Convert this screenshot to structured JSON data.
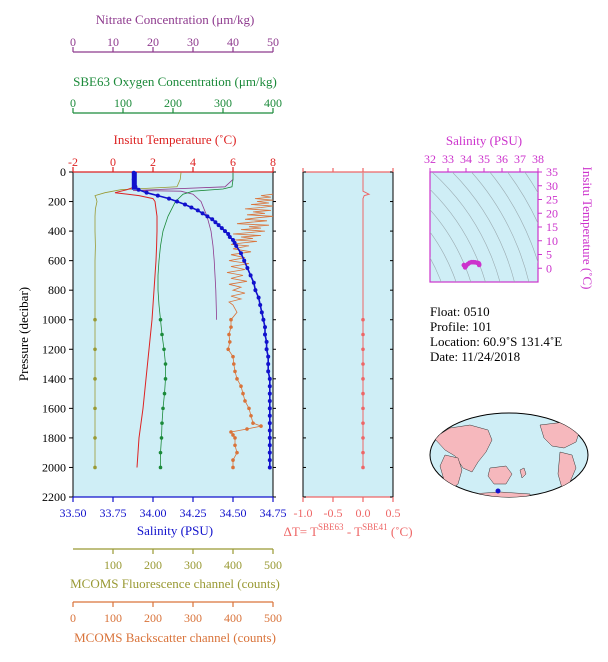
{
  "colors": {
    "nitrate": "#8e3a8e",
    "oxygen": "#1b8a3a",
    "temperature": "#dd2222",
    "salinity": "#1111cc",
    "fluorescence": "#999933",
    "backscatter": "#d9733a",
    "dt": "#ee6666",
    "ts_axis": "#cc33cc",
    "plot_bg": "#cfeef6",
    "land": "#f6b8bd",
    "ocean": "#cfeef6"
  },
  "float_info": {
    "float_line": "Float:  0510",
    "profile_line": "Profile:  101",
    "location_line": "Location:  60.9˚S  131.4˚E",
    "date_line": "Date:  11/24/2018"
  },
  "chart_data": [
    {
      "id": "profile",
      "type": "line",
      "ylabel": "Pressure (decibar)",
      "ylim": [
        2200,
        0
      ],
      "yticks": [
        "0",
        "200",
        "400",
        "600",
        "800",
        "1000",
        "1200",
        "1400",
        "1600",
        "1800",
        "2000",
        "2200"
      ],
      "axes": {
        "salinity": {
          "label": "Salinity (PSU)",
          "range": [
            33.5,
            34.75
          ],
          "ticks": [
            "33.50",
            "33.75",
            "34.00",
            "34.25",
            "34.50",
            "34.75"
          ]
        },
        "temperature": {
          "label": "Insitu Temperature (˚C)",
          "range": [
            -2,
            8
          ],
          "ticks": [
            "-2",
            "0",
            "2",
            "4",
            "6",
            "8"
          ]
        },
        "oxygen": {
          "label": "SBE63 Oxygen Concentration (μm/kg)",
          "range": [
            0,
            400
          ],
          "ticks": [
            "0",
            "100",
            "200",
            "300",
            "400"
          ]
        },
        "nitrate": {
          "label": "Nitrate Concentration (μm/kg)",
          "range": [
            0,
            50
          ],
          "ticks": [
            "0",
            "10",
            "20",
            "30",
            "40",
            "50"
          ]
        },
        "fluorescence": {
          "label": "MCOMS Fluorescence channel (counts)",
          "range": [
            0,
            500
          ],
          "ticks": [
            "100",
            "200",
            "300",
            "400",
            "500"
          ]
        },
        "backscatter": {
          "label": "MCOMS Backscatter channel (counts)",
          "range": [
            0,
            500
          ],
          "ticks": [
            "0",
            "100",
            "200",
            "300",
            "400",
            "500"
          ]
        }
      },
      "salinity": {
        "pressure": [
          5,
          50,
          100,
          120,
          140,
          160,
          180,
          200,
          220,
          240,
          260,
          280,
          300,
          320,
          340,
          360,
          380,
          400,
          420,
          440,
          460,
          480,
          500,
          550,
          600,
          650,
          700,
          750,
          800,
          850,
          900,
          950,
          1000,
          1050,
          1100,
          1150,
          1200,
          1250,
          1300,
          1350,
          1400,
          1450,
          1500,
          1550,
          1600,
          1650,
          1700,
          1750,
          1800,
          1850,
          1900,
          1950,
          2000
        ],
        "values": [
          33.88,
          33.88,
          33.89,
          33.91,
          33.96,
          34.03,
          34.1,
          34.15,
          34.2,
          34.24,
          34.28,
          34.31,
          34.34,
          34.37,
          34.39,
          34.41,
          34.43,
          34.45,
          34.47,
          34.48,
          34.5,
          34.51,
          34.52,
          34.55,
          34.57,
          34.59,
          34.61,
          34.63,
          34.64,
          34.66,
          34.67,
          34.68,
          34.69,
          34.7,
          34.7,
          34.71,
          34.71,
          34.72,
          34.72,
          34.72,
          34.73,
          34.73,
          34.73,
          34.73,
          34.73,
          34.73,
          34.73,
          34.73,
          34.73,
          34.73,
          34.73,
          34.73,
          34.73
        ]
      },
      "temperature": {
        "pressure": [
          5,
          60,
          100,
          120,
          140,
          160,
          180,
          200,
          300,
          400,
          500,
          600,
          700,
          800,
          900,
          1000,
          1200,
          1400,
          1600,
          1800,
          2000
        ],
        "values": [
          1.15,
          1.15,
          1.1,
          0.7,
          0.1,
          1.3,
          2.0,
          2.1,
          2.2,
          2.2,
          2.18,
          2.15,
          2.1,
          2.05,
          2.0,
          1.95,
          1.8,
          1.65,
          1.5,
          1.3,
          1.2
        ]
      },
      "oxygen": {
        "pressure": [
          5,
          50,
          100,
          115,
          130,
          150,
          200,
          300,
          400,
          500,
          600,
          700,
          800,
          900,
          1000,
          1100,
          1200,
          1300,
          1400,
          1500,
          1600,
          1700,
          1800,
          1900,
          2000
        ],
        "values": [
          320,
          320,
          318,
          300,
          240,
          220,
          205,
          190,
          180,
          175,
          172,
          170,
          170,
          172,
          175,
          178,
          182,
          185,
          185,
          183,
          180,
          178,
          177,
          175,
          175
        ]
      },
      "nitrate": {
        "pressure": [
          5,
          50,
          100,
          125,
          130,
          150,
          200,
          300,
          400,
          500,
          600,
          700,
          800,
          900,
          1000
        ],
        "values": [
          40,
          40,
          38,
          15,
          27,
          30,
          32,
          33.5,
          34.5,
          35,
          35.3,
          35.5,
          35.7,
          35.8,
          35.9
        ]
      },
      "fluorescence": {
        "pressure": [
          5,
          50,
          100,
          120,
          140,
          160,
          180,
          200,
          250,
          300,
          400,
          500,
          600,
          700,
          800,
          1000,
          1200,
          1400,
          1600,
          1800,
          2000
        ],
        "values": [
          270,
          268,
          260,
          120,
          80,
          55,
          58,
          60,
          56,
          55,
          55,
          56,
          55,
          55,
          55,
          55,
          55,
          55,
          55,
          55,
          55
        ]
      },
      "backscatter": {
        "pressure": [
          150,
          160,
          170,
          180,
          190,
          200,
          210,
          220,
          230,
          240,
          250,
          260,
          270,
          280,
          290,
          300,
          310,
          320,
          330,
          340,
          350,
          360,
          370,
          380,
          390,
          400,
          410,
          420,
          430,
          440,
          450,
          460,
          470,
          480,
          490,
          500,
          520,
          540,
          560,
          580,
          600,
          620,
          640,
          660,
          680,
          700,
          720,
          740,
          760,
          780,
          800,
          820,
          840,
          860,
          880,
          900,
          950,
          1000,
          1050,
          1100,
          1150,
          1200,
          1250,
          1300,
          1350,
          1400,
          1450,
          1500,
          1550,
          1600,
          1650,
          1700,
          1720,
          1740,
          1760,
          1780,
          1800,
          1850,
          1900,
          1950,
          2000
        ],
        "values": [
          500,
          470,
          495,
          455,
          500,
          460,
          490,
          445,
          500,
          470,
          430,
          495,
          450,
          480,
          435,
          500,
          460,
          430,
          485,
          445,
          410,
          490,
          440,
          470,
          420,
          480,
          440,
          400,
          470,
          420,
          450,
          405,
          460,
          425,
          395,
          440,
          400,
          445,
          395,
          430,
          390,
          440,
          395,
          430,
          385,
          425,
          395,
          435,
          390,
          420,
          400,
          430,
          395,
          420,
          390,
          400,
          410,
          395,
          395,
          390,
          392,
          388,
          400,
          402,
          405,
          410,
          420,
          425,
          430,
          440,
          445,
          450,
          470,
          435,
          395,
          400,
          405,
          405,
          410,
          400,
          400
        ]
      }
    },
    {
      "id": "dt",
      "type": "line",
      "xlabel_main": "ΔT= T",
      "xlabel_sup1": "SBE63",
      "xlabel_mid": " - T",
      "xlabel_sup2": "SBE41",
      "xlabel_unit": " (˚C)",
      "xlim": [
        -1.0,
        0.5
      ],
      "xticks": [
        "-1.0",
        "-0.5",
        "0.0",
        "0.5"
      ],
      "pressure": [
        5,
        100,
        130,
        140,
        150,
        160,
        180,
        200,
        300,
        400,
        500,
        600,
        700,
        800,
        900,
        1000,
        1100,
        1200,
        1300,
        1400,
        1500,
        1600,
        1700,
        1800,
        1900,
        2000
      ],
      "values": [
        0,
        0,
        0.0,
        0.05,
        0.1,
        0.02,
        0,
        0,
        0,
        0,
        0,
        0,
        0,
        0,
        0,
        0,
        0,
        0,
        0,
        0,
        0,
        0,
        0,
        0,
        0,
        0
      ]
    },
    {
      "id": "ts",
      "type": "scatter",
      "xlabel": "Salinity (PSU)",
      "ylabel": "Insitu Temperature (˚C)",
      "xlim": [
        32,
        38
      ],
      "ylim": [
        -5,
        35
      ],
      "xticks": [
        "32",
        "33",
        "34",
        "35",
        "36",
        "37",
        "38"
      ],
      "yticks": [
        "0",
        "5",
        "10",
        "15",
        "20",
        "25",
        "30",
        "35"
      ],
      "points": [
        [
          33.88,
          1.15
        ],
        [
          33.9,
          1.1
        ],
        [
          33.95,
          0.3
        ],
        [
          34.0,
          0.8
        ],
        [
          34.1,
          1.5
        ],
        [
          34.2,
          2.0
        ],
        [
          34.3,
          2.2
        ],
        [
          34.4,
          2.2
        ],
        [
          34.5,
          2.15
        ],
        [
          34.6,
          2.05
        ],
        [
          34.65,
          1.95
        ],
        [
          34.7,
          1.8
        ],
        [
          34.72,
          1.6
        ],
        [
          34.73,
          1.4
        ],
        [
          34.73,
          1.2
        ]
      ]
    }
  ]
}
